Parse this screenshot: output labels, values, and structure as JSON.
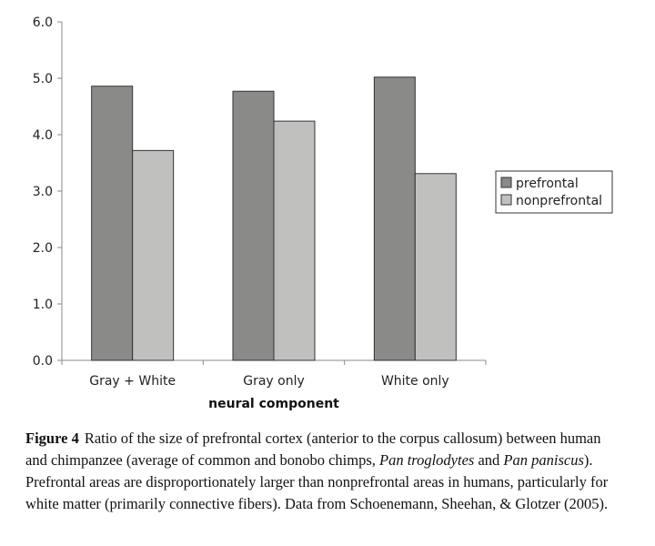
{
  "chart_data": {
    "type": "bar",
    "categories": [
      "Gray + White",
      "Gray only",
      "White only"
    ],
    "series": [
      {
        "name": "prefrontal",
        "values": [
          4.86,
          4.77,
          5.02
        ],
        "color": "#8a8a88"
      },
      {
        "name": "nonprefrontal",
        "values": [
          3.72,
          4.24,
          3.31
        ],
        "color": "#c0c0be"
      }
    ],
    "xlabel": "neural component",
    "ylabel": "",
    "ylim": [
      0,
      6
    ],
    "yticks": [
      "0.0",
      "1.0",
      "2.0",
      "3.0",
      "4.0",
      "5.0",
      "6.0"
    ],
    "legend_position": "right",
    "grid": false
  },
  "caption": {
    "label": "Figure 4",
    "parts": [
      {
        "text": "Ratio of the size of prefrontal cortex (anterior to the corpus callosum) between human and chimpanzee (average of common and bonobo chimps, ",
        "italic": false
      },
      {
        "text": "Pan troglodytes",
        "italic": true
      },
      {
        "text": " and ",
        "italic": false
      },
      {
        "text": "Pan paniscus",
        "italic": true
      },
      {
        "text": "). Prefrontal areas are disproportionately larger than nonprefrontal areas in humans, particularly for white matter (primarily connective fibers). Data from Schoenemann, Sheehan, & Glotzer (2005).",
        "italic": false
      }
    ]
  }
}
